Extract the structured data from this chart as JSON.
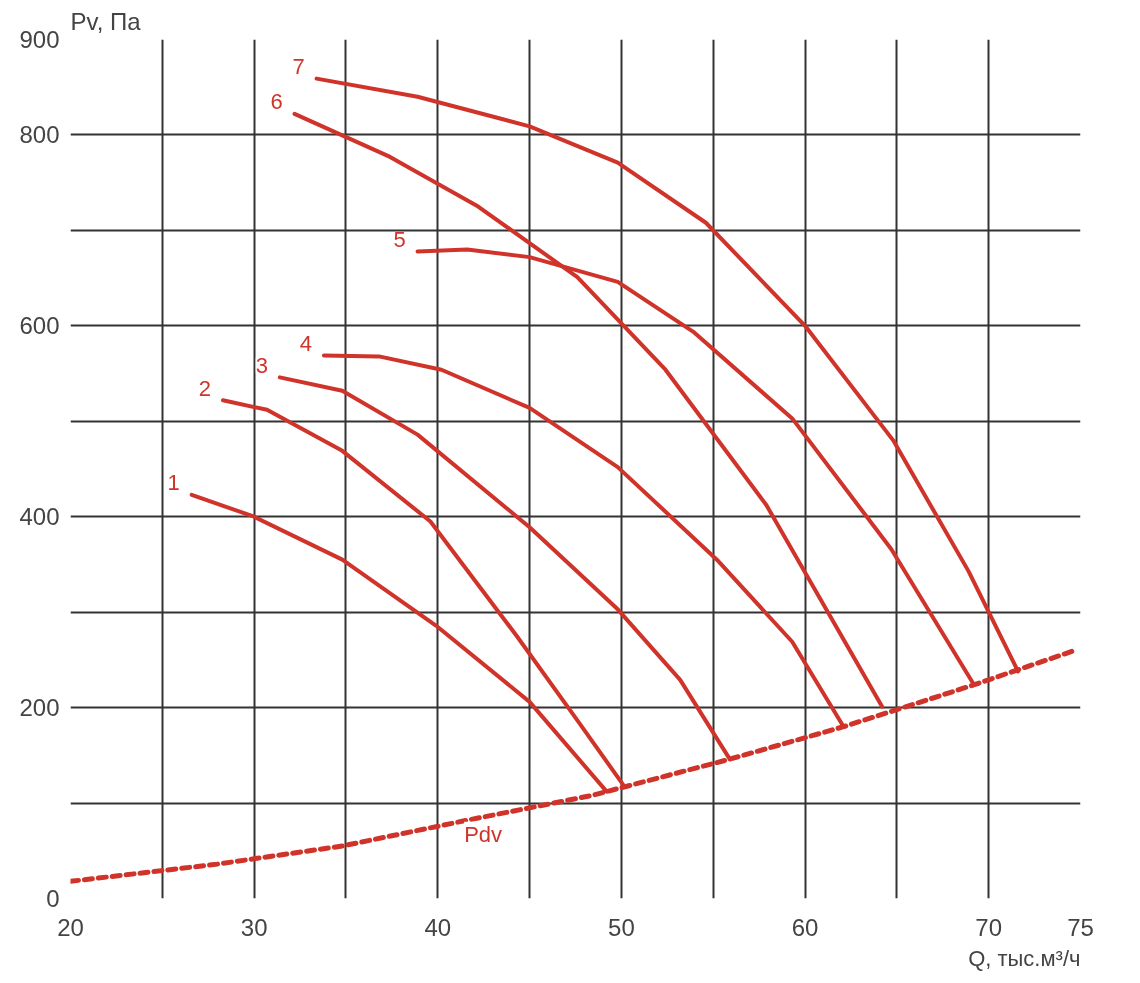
{
  "chart_data": {
    "type": "line",
    "xlabel": "Q, тыс.м³/ч",
    "ylabel": "Pv, Па",
    "xlim": [
      20,
      75
    ],
    "ylim": [
      0,
      900
    ],
    "xticks": [
      20,
      {
        "value": 25,
        "label": null
      },
      30,
      {
        "value": 35,
        "label": null
      },
      40,
      {
        "value": 45,
        "label": null
      },
      50,
      {
        "value": 55,
        "label": null
      },
      60,
      {
        "value": 65,
        "label": null
      },
      70,
      75
    ],
    "yticks": [
      0,
      {
        "value": 100,
        "label": null
      },
      200,
      {
        "value": 300,
        "label": null
      },
      400,
      {
        "value": 500,
        "label": null
      },
      600,
      {
        "value": 700,
        "label": null
      },
      800,
      900
    ],
    "grid": true,
    "marker": "none",
    "series": [
      {
        "name": "1",
        "color": "#d0332a",
        "line_style": "solid",
        "x": [
          26.6,
          30,
          34.8,
          39.9,
          45,
          49.2
        ],
        "values": [
          423,
          400,
          355,
          286,
          206,
          112
        ]
      },
      {
        "name": "2",
        "color": "#d0332a",
        "line_style": "solid",
        "x": [
          28.3,
          30.7,
          34.8,
          39.6,
          44.3,
          47.7,
          50.1
        ],
        "values": [
          522,
          512,
          469,
          395,
          275,
          184,
          119
        ]
      },
      {
        "name": "3",
        "color": "#d0332a",
        "line_style": "solid",
        "x": [
          31.4,
          34.8,
          38.9,
          45,
          49.8,
          53.2,
          55.9
        ],
        "values": [
          546,
          532,
          486,
          389,
          303,
          229,
          146
        ]
      },
      {
        "name": "4",
        "color": "#d0332a",
        "line_style": "solid",
        "x": [
          33.8,
          36.8,
          40.2,
          45,
          49.8,
          55.2,
          59.3,
          62.1
        ],
        "values": [
          569,
          568,
          554,
          514,
          452,
          355,
          269,
          180
        ]
      },
      {
        "name": "5",
        "color": "#d0332a",
        "line_style": "solid",
        "x": [
          38.9,
          41.6,
          45,
          49.8,
          53.9,
          59.3,
          64.7,
          69.2
        ],
        "values": [
          678,
          680,
          672,
          646,
          594,
          503,
          366,
          224
        ]
      },
      {
        "name": "6",
        "color": "#d0332a",
        "line_style": "solid",
        "x": [
          32.2,
          37.4,
          42.2,
          47.6,
          52.4,
          57.9,
          61.3,
          64.2
        ],
        "values": [
          822,
          777,
          725,
          651,
          554,
          412,
          298,
          201
        ]
      },
      {
        "name": "7",
        "color": "#d0332a",
        "line_style": "solid",
        "x": [
          33.4,
          38.9,
          45,
          49.8,
          54.6,
          60,
          64.8,
          68.9,
          71.6
        ],
        "values": [
          859,
          840,
          809,
          771,
          708,
          600,
          480,
          343,
          238
        ]
      },
      {
        "name": "Pdv",
        "color": "#d0332a",
        "line_style": "dashed",
        "x": [
          20,
          28,
          34.8,
          41.6,
          48.4,
          55.9,
          62.1,
          68.9,
          74.7
        ],
        "values": [
          18,
          36,
          55,
          82,
          108,
          146,
          180,
          222,
          260
        ]
      }
    ]
  }
}
